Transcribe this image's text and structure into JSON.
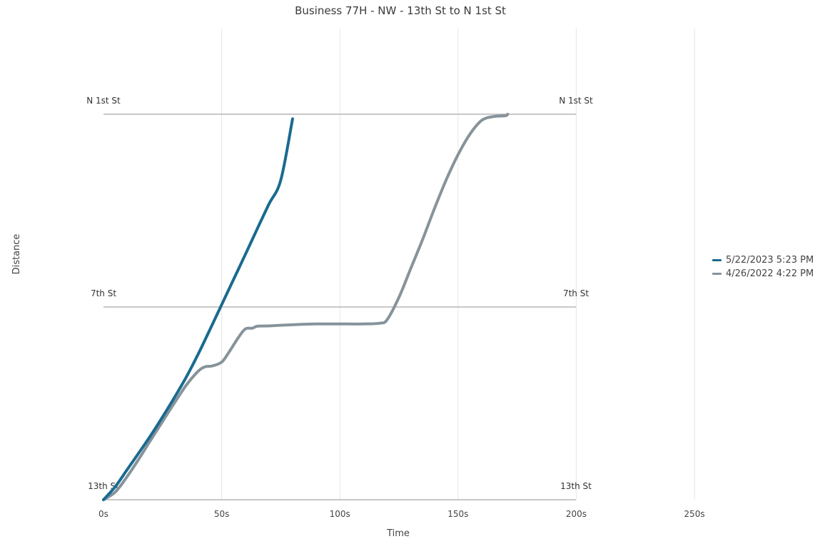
{
  "chart_data": {
    "type": "line",
    "title": "Business 77H - NW - 13th St to N 1st St",
    "xlabel": "Time",
    "ylabel": "Distance",
    "xlim": [
      0,
      250
    ],
    "x_ticks": [
      "0s",
      "50s",
      "100s",
      "150s",
      "200s",
      "250s"
    ],
    "x_tick_values": [
      0,
      50,
      100,
      150,
      200,
      250
    ],
    "grid": "vertical",
    "legend_position": "right",
    "reference_lines": [
      {
        "name": "13th St",
        "distance": 0
      },
      {
        "name": "7th St",
        "distance": 0.5
      },
      {
        "name": "N 1st St",
        "distance": 1
      }
    ],
    "series": [
      {
        "name": "5/22/2023 5:23 PM",
        "color": "#1a6a8f",
        "points": [
          [
            0,
            0
          ],
          [
            5,
            0.034
          ],
          [
            10,
            0.078
          ],
          [
            15,
            0.122
          ],
          [
            20,
            0.167
          ],
          [
            25,
            0.215
          ],
          [
            30,
            0.265
          ],
          [
            35,
            0.318
          ],
          [
            40,
            0.377
          ],
          [
            45,
            0.441
          ],
          [
            50,
            0.506
          ],
          [
            55,
            0.571
          ],
          [
            60,
            0.636
          ],
          [
            65,
            0.702
          ],
          [
            70,
            0.767
          ],
          [
            75,
            0.829
          ],
          [
            80,
            0.988
          ]
        ]
      },
      {
        "name": "4/26/2022 4:22 PM",
        "color": "#86939b",
        "points": [
          [
            0,
            0
          ],
          [
            5,
            0.02
          ],
          [
            10,
            0.06
          ],
          [
            15,
            0.106
          ],
          [
            20,
            0.155
          ],
          [
            25,
            0.203
          ],
          [
            30,
            0.251
          ],
          [
            35,
            0.297
          ],
          [
            40,
            0.333
          ],
          [
            43,
            0.345
          ],
          [
            46,
            0.347
          ],
          [
            50,
            0.357
          ],
          [
            53,
            0.382
          ],
          [
            57,
            0.42
          ],
          [
            60,
            0.443
          ],
          [
            63,
            0.445
          ],
          [
            65,
            0.45
          ],
          [
            70,
            0.451
          ],
          [
            80,
            0.454
          ],
          [
            90,
            0.456
          ],
          [
            100,
            0.456
          ],
          [
            110,
            0.456
          ],
          [
            117,
            0.458
          ],
          [
            120,
            0.467
          ],
          [
            125,
            0.525
          ],
          [
            130,
            0.6
          ],
          [
            135,
            0.675
          ],
          [
            140,
            0.755
          ],
          [
            145,
            0.83
          ],
          [
            150,
            0.895
          ],
          [
            155,
            0.948
          ],
          [
            160,
            0.984
          ],
          [
            165,
            0.994
          ],
          [
            170,
            0.996
          ],
          [
            171,
            1.0
          ]
        ]
      }
    ]
  }
}
